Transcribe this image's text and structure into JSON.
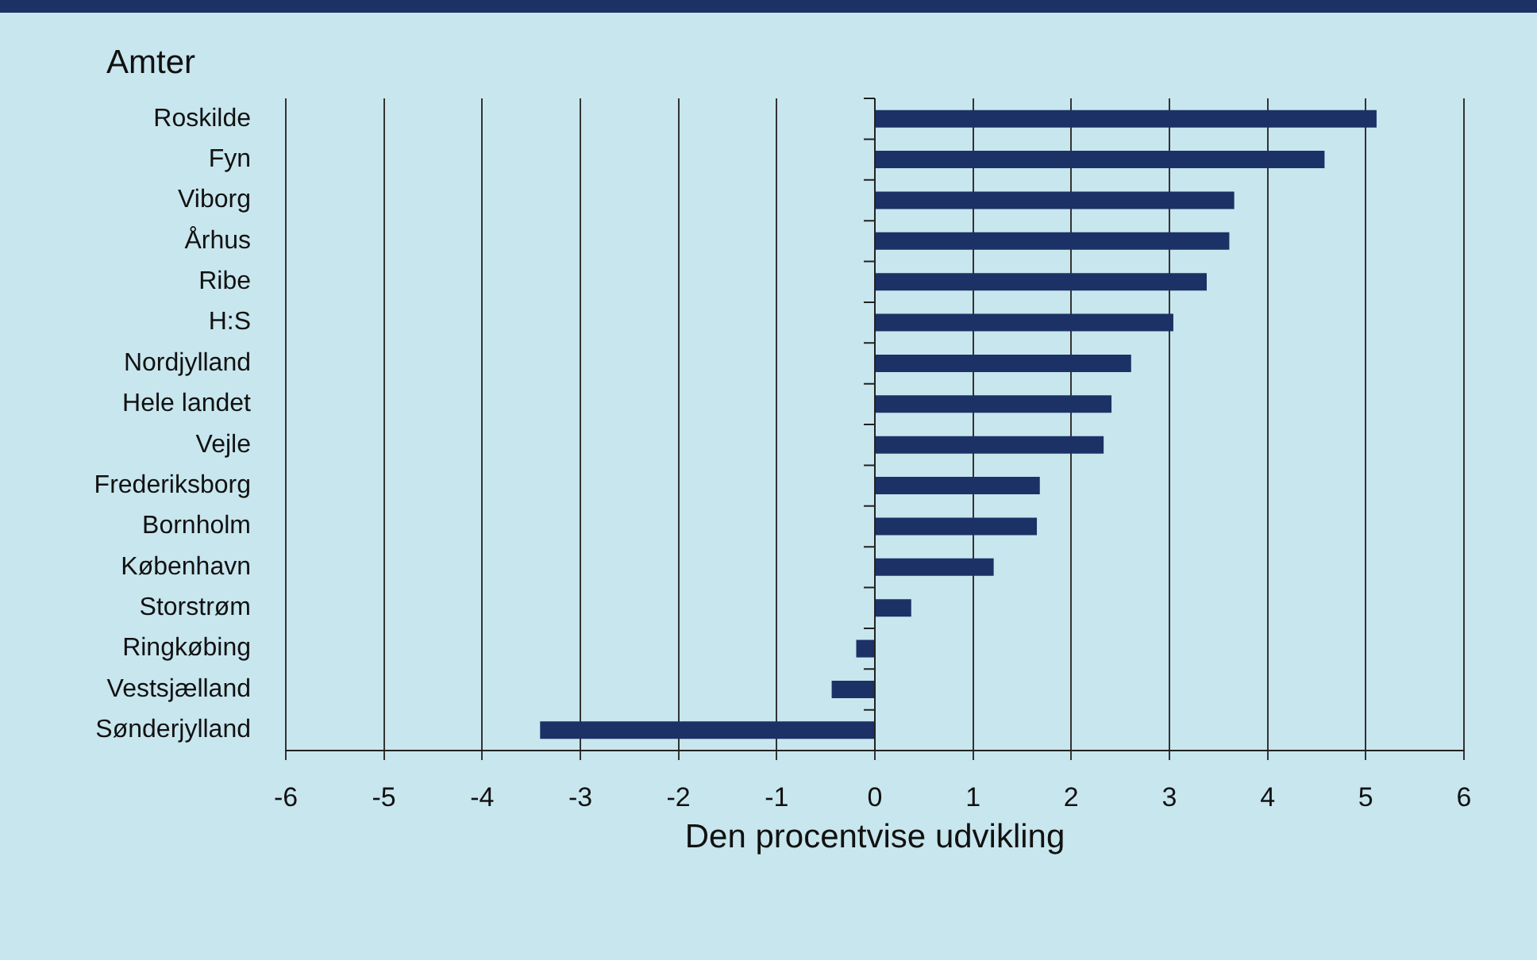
{
  "chart_data": {
    "type": "bar",
    "orientation": "horizontal",
    "ylabel": "Amter",
    "xlabel": "Den procentvise udvikling",
    "categories": [
      "Roskilde",
      "Fyn",
      "Viborg",
      "Århus",
      "Ribe",
      "H:S",
      "Nordjylland",
      "Hele landet",
      "Vejle",
      "Frederiksborg",
      "Bornholm",
      "København",
      "Storstrøm",
      "Ringkøbing",
      "Vestsjælland",
      "Sønderjylland"
    ],
    "values": [
      5.11,
      4.58,
      3.66,
      3.61,
      3.38,
      3.04,
      2.61,
      2.41,
      2.33,
      1.68,
      1.65,
      1.21,
      0.37,
      -0.19,
      -0.44,
      -3.41
    ],
    "color": "#1c3166",
    "xlim": [
      -6,
      6
    ],
    "xticks": [
      -6,
      -5,
      -4,
      -3,
      -2,
      -1,
      0,
      1,
      2,
      3,
      4,
      5,
      6
    ],
    "grid": "x",
    "legend": false
  }
}
